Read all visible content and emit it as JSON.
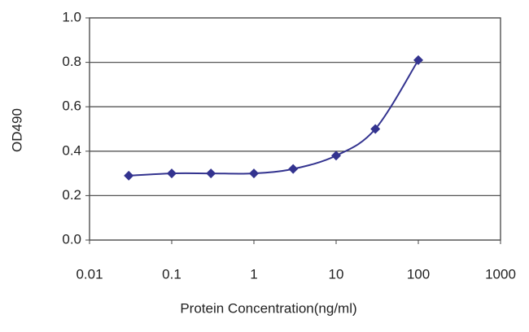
{
  "chart_data": {
    "type": "line",
    "x_label": "Protein Concentration(ng/ml)",
    "y_label": "OD490",
    "x_scale": "log",
    "xlim": [
      0.01,
      1000
    ],
    "xticks": [
      0.01,
      0.1,
      1,
      10,
      100,
      1000
    ],
    "ylim": [
      0,
      1
    ],
    "yticks": [
      {
        "value": 0,
        "label": "0.0"
      },
      {
        "value": 0.2,
        "label": "0.2"
      },
      {
        "value": 0.4,
        "label": "0.4"
      },
      {
        "value": 0.6,
        "label": "0.6"
      },
      {
        "value": 0.8,
        "label": "0.8"
      },
      {
        "value": 1,
        "label": "1.0"
      }
    ],
    "grid": true,
    "series": [
      {
        "color": "#33338f",
        "x": [
          0.03,
          0.1,
          0.3,
          1,
          3,
          10,
          30,
          100
        ],
        "values": [
          0.29,
          0.3,
          0.3,
          0.3,
          0.32,
          0.38,
          0.5,
          0.81
        ]
      }
    ]
  }
}
